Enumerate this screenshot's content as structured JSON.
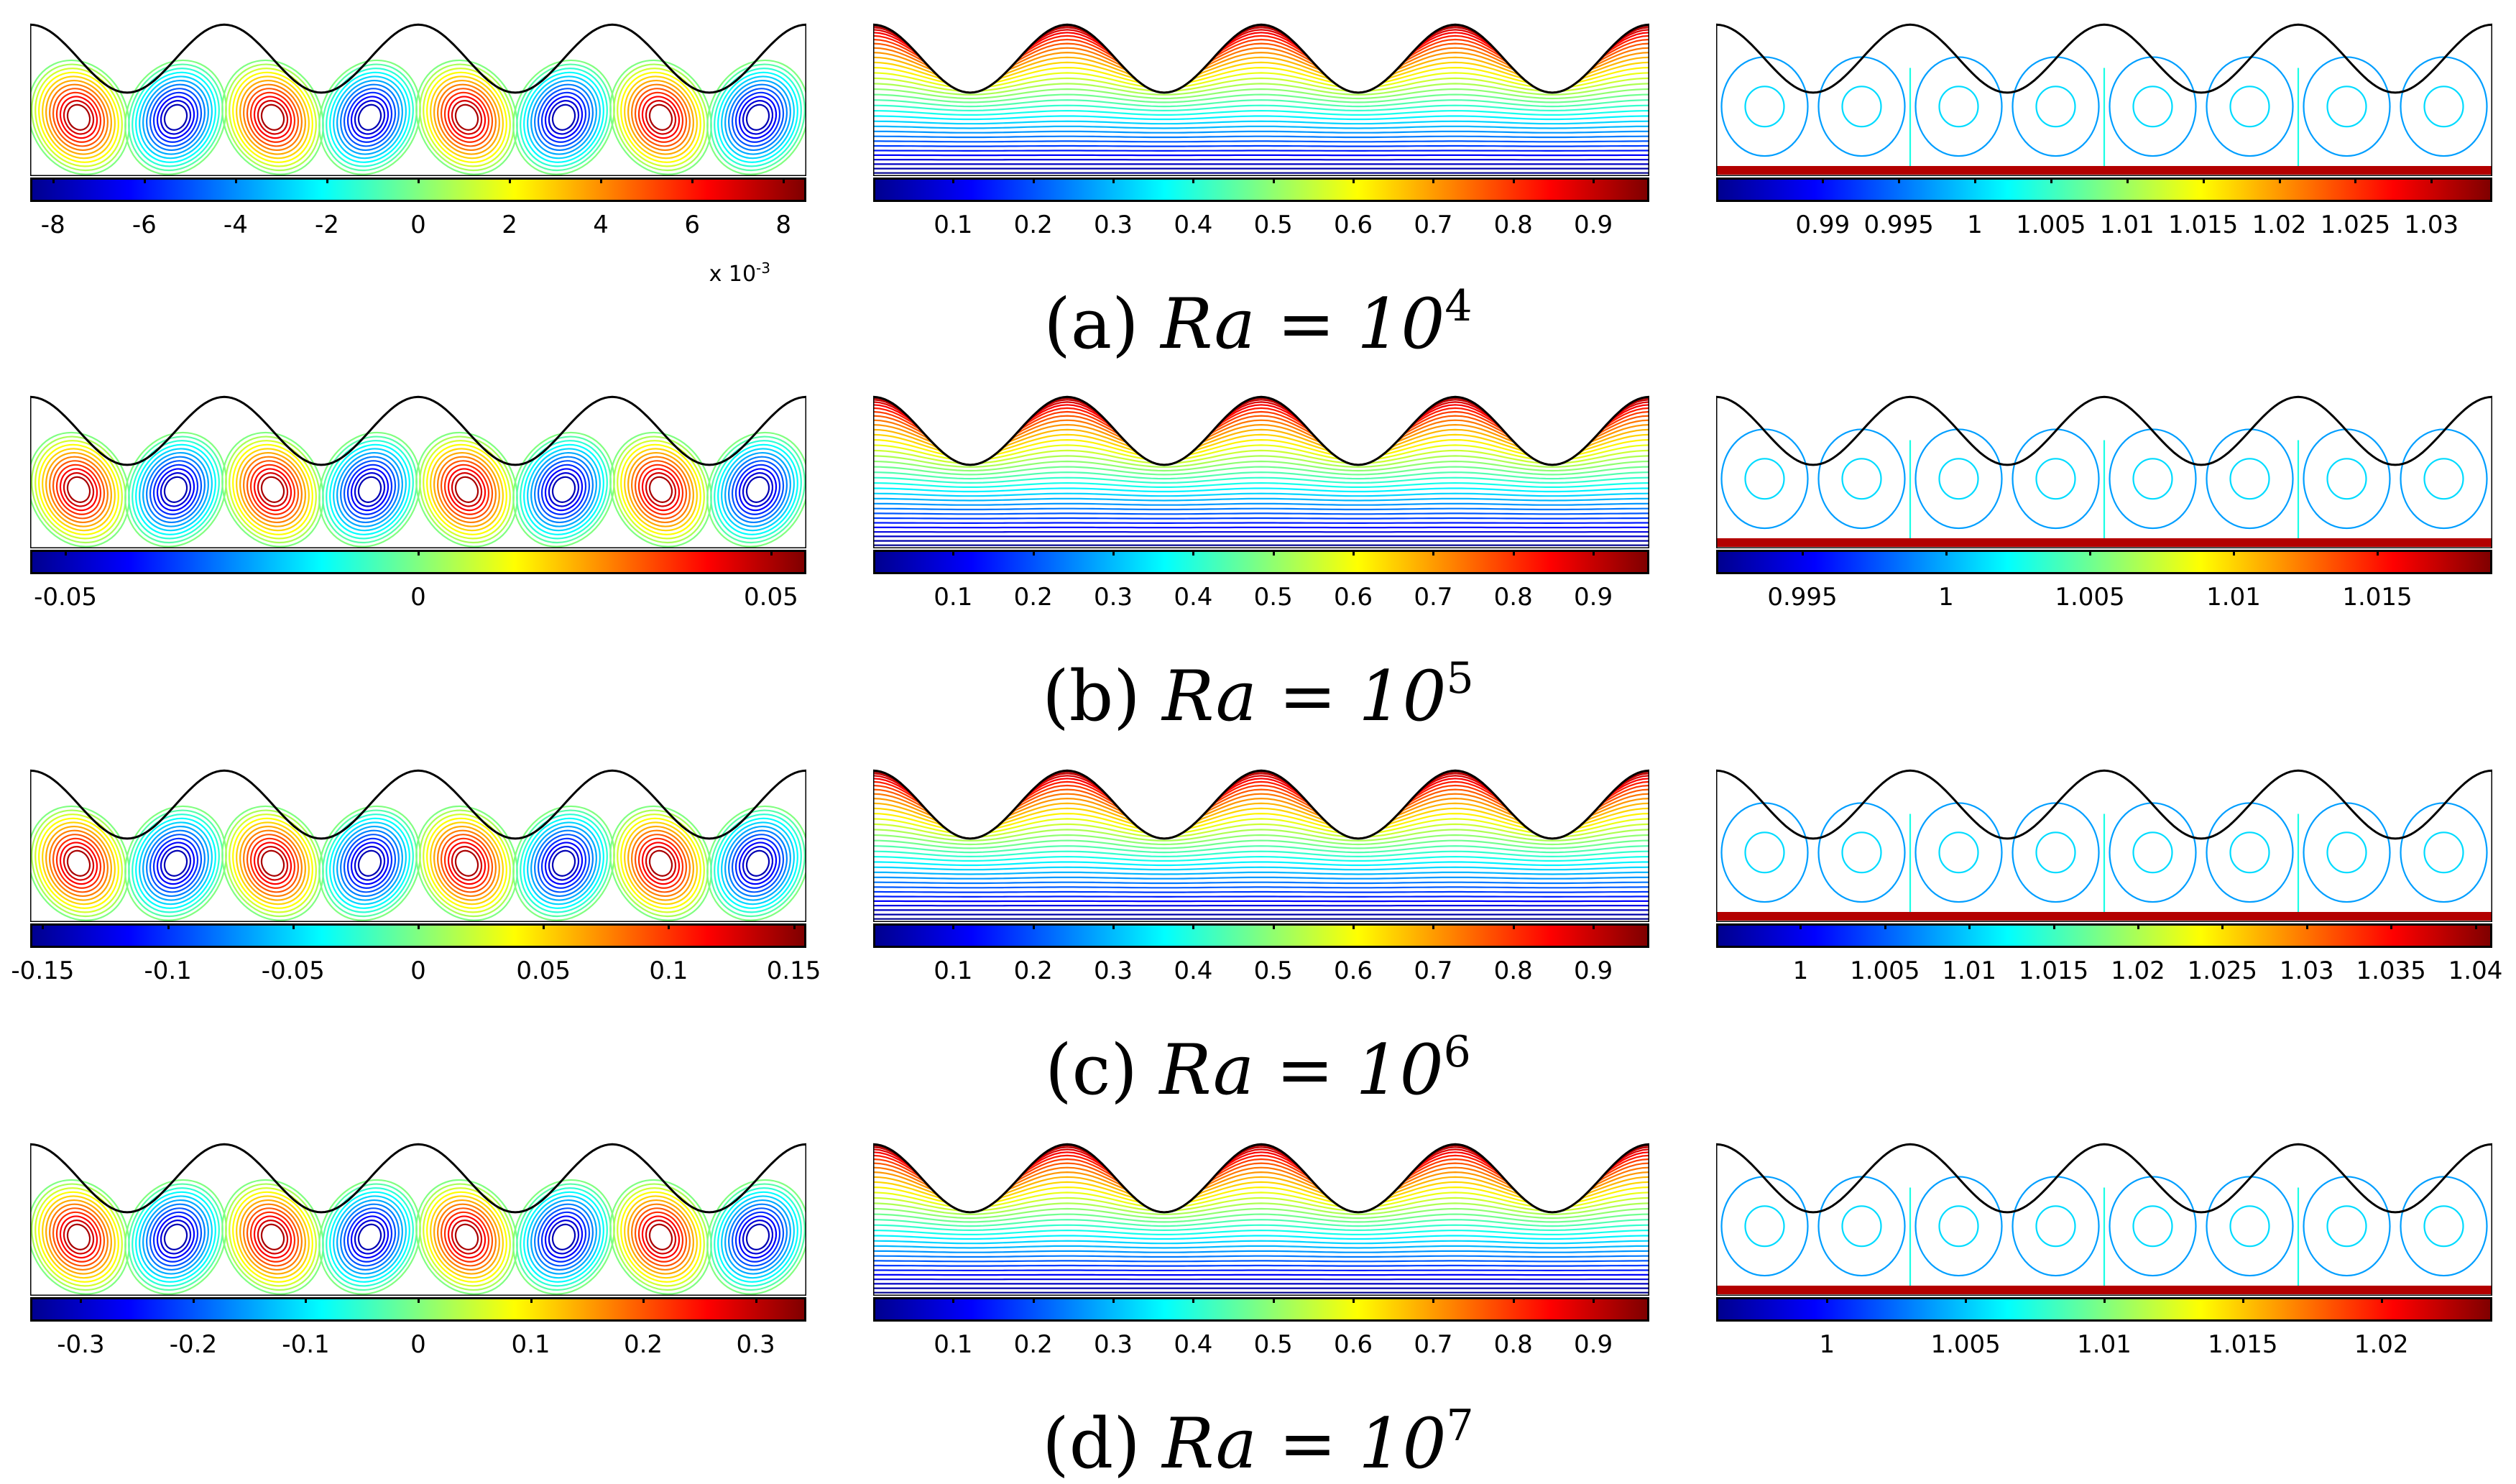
{
  "figure": {
    "colormap": [
      "#00008f",
      "#0000ff",
      "#0080ff",
      "#00ffff",
      "#80ff80",
      "#ffff00",
      "#ff8000",
      "#ff0000",
      "#800000"
    ],
    "rows": [
      {
        "label": "(a)",
        "ra_base": "Ra = 10",
        "ra_exp": "4",
        "panels": [
          {
            "name": "streamfunction",
            "ticks": [
              "-8",
              "-6",
              "-4",
              "-2",
              "0",
              "2",
              "4",
              "6",
              "8"
            ],
            "range": [
              -8.5,
              8.5
            ],
            "tick_values": [
              -8,
              -6,
              -4,
              -2,
              0,
              2,
              4,
              6,
              8
            ],
            "multiplier": "x 10",
            "multiplier_exp": "-3"
          },
          {
            "name": "temperature",
            "ticks": [
              "0.1",
              "0.2",
              "0.3",
              "0.4",
              "0.5",
              "0.6",
              "0.7",
              "0.8",
              "0.9"
            ],
            "range": [
              0.0,
              0.97
            ],
            "tick_values": [
              0.1,
              0.2,
              0.3,
              0.4,
              0.5,
              0.6,
              0.7,
              0.8,
              0.9
            ]
          },
          {
            "name": "concentration",
            "ticks": [
              "0.99",
              "0.995",
              "1",
              "1.005",
              "1.01",
              "1.015",
              "1.02",
              "1.025",
              "1.03"
            ],
            "range": [
              0.983,
              1.034
            ],
            "tick_values": [
              0.99,
              0.995,
              1,
              1.005,
              1.01,
              1.015,
              1.02,
              1.025,
              1.03
            ]
          }
        ]
      },
      {
        "label": "(b)",
        "ra_base": "Ra = 10",
        "ra_exp": "5",
        "panels": [
          {
            "name": "streamfunction",
            "ticks": [
              "-0.05",
              "0",
              "0.05"
            ],
            "range": [
              -0.055,
              0.055
            ],
            "tick_values": [
              -0.05,
              0,
              0.05
            ]
          },
          {
            "name": "temperature",
            "ticks": [
              "0.1",
              "0.2",
              "0.3",
              "0.4",
              "0.5",
              "0.6",
              "0.7",
              "0.8",
              "0.9"
            ],
            "range": [
              0.0,
              0.97
            ],
            "tick_values": [
              0.1,
              0.2,
              0.3,
              0.4,
              0.5,
              0.6,
              0.7,
              0.8,
              0.9
            ]
          },
          {
            "name": "concentration",
            "ticks": [
              "0.995",
              "1",
              "1.005",
              "1.01",
              "1.015"
            ],
            "range": [
              0.992,
              1.019
            ],
            "tick_values": [
              0.995,
              1,
              1.005,
              1.01,
              1.015
            ]
          }
        ]
      },
      {
        "label": "(c)",
        "ra_base": "Ra = 10",
        "ra_exp": "6",
        "panels": [
          {
            "name": "streamfunction",
            "ticks": [
              "-0.15",
              "-0.1",
              "-0.05",
              "0",
              "0.05",
              "0.1",
              "0.15"
            ],
            "range": [
              -0.155,
              0.155
            ],
            "tick_values": [
              -0.15,
              -0.1,
              -0.05,
              0,
              0.05,
              0.1,
              0.15
            ]
          },
          {
            "name": "temperature",
            "ticks": [
              "0.1",
              "0.2",
              "0.3",
              "0.4",
              "0.5",
              "0.6",
              "0.7",
              "0.8",
              "0.9"
            ],
            "range": [
              0.0,
              0.97
            ],
            "tick_values": [
              0.1,
              0.2,
              0.3,
              0.4,
              0.5,
              0.6,
              0.7,
              0.8,
              0.9
            ]
          },
          {
            "name": "concentration",
            "ticks": [
              "1",
              "1.005",
              "1.01",
              "1.015",
              "1.02",
              "1.025",
              "1.03",
              "1.035",
              "1.04"
            ],
            "range": [
              0.995,
              1.041
            ],
            "tick_values": [
              1,
              1.005,
              1.01,
              1.015,
              1.02,
              1.025,
              1.03,
              1.035,
              1.04
            ]
          }
        ]
      },
      {
        "label": "(d)",
        "ra_base": "Ra = 10",
        "ra_exp": "7",
        "panels": [
          {
            "name": "streamfunction",
            "ticks": [
              "-0.3",
              "-0.2",
              "-0.1",
              "0",
              "0.1",
              "0.2",
              "0.3"
            ],
            "range": [
              -0.345,
              0.345
            ],
            "tick_values": [
              -0.3,
              -0.2,
              -0.1,
              0,
              0.1,
              0.2,
              0.3
            ]
          },
          {
            "name": "temperature",
            "ticks": [
              "0.1",
              "0.2",
              "0.3",
              "0.4",
              "0.5",
              "0.6",
              "0.7",
              "0.8",
              "0.9"
            ],
            "range": [
              0.0,
              0.97
            ],
            "tick_values": [
              0.1,
              0.2,
              0.3,
              0.4,
              0.5,
              0.6,
              0.7,
              0.8,
              0.9
            ]
          },
          {
            "name": "concentration",
            "ticks": [
              "1",
              "1.005",
              "1.01",
              "1.015",
              "1.02"
            ],
            "range": [
              0.996,
              1.024
            ],
            "tick_values": [
              1,
              1.005,
              1.01,
              1.015,
              1.02
            ]
          }
        ]
      }
    ]
  }
}
